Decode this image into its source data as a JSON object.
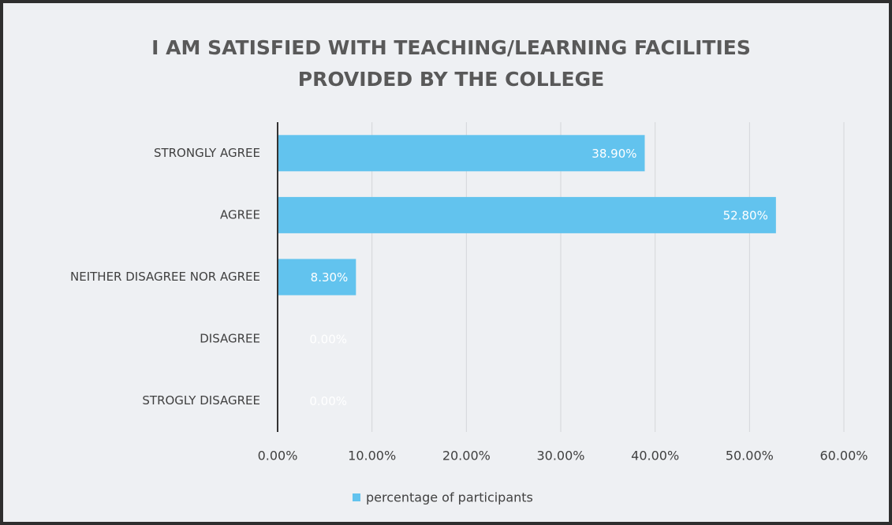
{
  "chart_data": {
    "type": "bar",
    "orientation": "horizontal",
    "title": [
      "I AM SATISFIED WITH TEACHING/LEARNING FACILITIES",
      "PROVIDED BY THE COLLEGE"
    ],
    "categories": [
      "STRONGLY AGREE",
      "AGREE",
      "NEITHER DISAGREE NOR AGREE",
      "DISAGREE",
      "STROGLY DISAGREE"
    ],
    "series": [
      {
        "name": "percentage of participants",
        "color": "#62c3ee",
        "values": [
          38.9,
          52.8,
          8.3,
          0,
          0
        ],
        "value_labels": [
          "38.90%",
          "52.80%",
          "8.30%",
          "0.00%",
          "0.00%"
        ]
      }
    ],
    "xlim": [
      0,
      60
    ],
    "xticks": [
      {
        "value": 0,
        "label": "0.00%"
      },
      {
        "value": 10,
        "label": "10.00%"
      },
      {
        "value": 20,
        "label": "20.00%"
      },
      {
        "value": 30,
        "label": "30.00%"
      },
      {
        "value": 40,
        "label": "40.00%"
      },
      {
        "value": 50,
        "label": "50.00%"
      },
      {
        "value": 60,
        "label": "60.00%"
      }
    ],
    "grid": true,
    "legend": "bottom"
  }
}
